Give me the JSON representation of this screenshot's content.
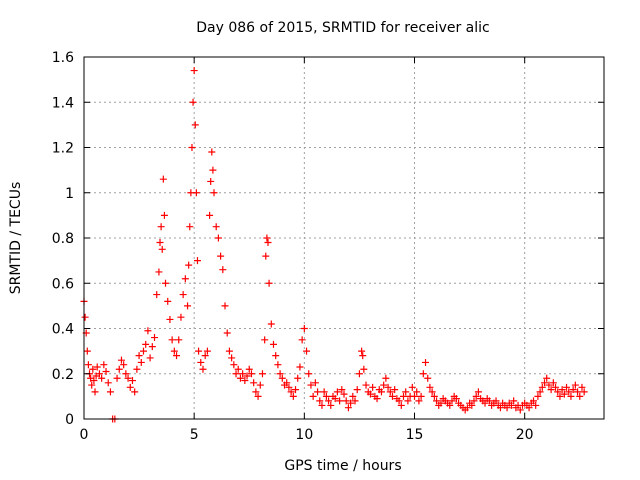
{
  "chart_data": {
    "type": "scatter",
    "title": "Day 086 of 2015, SRMTID for receiver alic",
    "xlabel": "GPS time / hours",
    "ylabel": "SRMTID / TECUs",
    "xlim": [
      0,
      23.6
    ],
    "ylim": [
      0,
      1.6
    ],
    "grid": true,
    "marker": "+",
    "x_ticks": [
      0,
      5,
      10,
      15,
      20
    ],
    "x_tick_labels": [
      "0",
      "5",
      "10",
      "15",
      "20"
    ],
    "y_ticks": [
      0,
      0.2,
      0.4,
      0.6,
      0.8,
      1,
      1.2,
      1.4,
      1.6
    ],
    "y_tick_labels": [
      "0",
      "0.2",
      "0.4",
      "0.6",
      "0.8",
      "1",
      "1.2",
      "1.4",
      "1.6"
    ],
    "series": [
      {
        "name": "SRMTID",
        "color": "#ff0000",
        "points": [
          [
            0.0,
            0.52
          ],
          [
            0.05,
            0.45
          ],
          [
            0.1,
            0.38
          ],
          [
            0.15,
            0.3
          ],
          [
            0.2,
            0.24
          ],
          [
            0.25,
            0.2
          ],
          [
            0.3,
            0.18
          ],
          [
            0.35,
            0.15
          ],
          [
            0.4,
            0.22
          ],
          [
            0.45,
            0.17
          ],
          [
            0.5,
            0.12
          ],
          [
            0.55,
            0.19
          ],
          [
            0.6,
            0.23
          ],
          [
            0.7,
            0.2
          ],
          [
            0.8,
            0.18
          ],
          [
            0.9,
            0.24
          ],
          [
            1.0,
            0.21
          ],
          [
            1.1,
            0.16
          ],
          [
            1.2,
            0.12
          ],
          [
            1.3,
            0.0
          ],
          [
            1.4,
            0.0
          ],
          [
            1.5,
            0.18
          ],
          [
            1.6,
            0.22
          ],
          [
            1.7,
            0.26
          ],
          [
            1.8,
            0.24
          ],
          [
            1.9,
            0.2
          ],
          [
            2.0,
            0.18
          ],
          [
            2.1,
            0.14
          ],
          [
            2.2,
            0.17
          ],
          [
            2.3,
            0.12
          ],
          [
            2.4,
            0.22
          ],
          [
            2.5,
            0.28
          ],
          [
            2.6,
            0.25
          ],
          [
            2.7,
            0.3
          ],
          [
            2.8,
            0.33
          ],
          [
            2.9,
            0.39
          ],
          [
            3.0,
            0.27
          ],
          [
            3.1,
            0.32
          ],
          [
            3.2,
            0.36
          ],
          [
            3.3,
            0.55
          ],
          [
            3.4,
            0.65
          ],
          [
            3.45,
            0.78
          ],
          [
            3.5,
            0.85
          ],
          [
            3.55,
            0.75
          ],
          [
            3.6,
            1.06
          ],
          [
            3.65,
            0.9
          ],
          [
            3.7,
            0.6
          ],
          [
            3.8,
            0.52
          ],
          [
            3.9,
            0.44
          ],
          [
            4.0,
            0.35
          ],
          [
            4.1,
            0.3
          ],
          [
            4.2,
            0.28
          ],
          [
            4.3,
            0.35
          ],
          [
            4.4,
            0.45
          ],
          [
            4.5,
            0.55
          ],
          [
            4.6,
            0.62
          ],
          [
            4.7,
            0.5
          ],
          [
            4.75,
            0.68
          ],
          [
            4.8,
            0.85
          ],
          [
            4.85,
            1.0
          ],
          [
            4.9,
            1.2
          ],
          [
            4.95,
            1.4
          ],
          [
            5.0,
            1.54
          ],
          [
            5.05,
            1.3
          ],
          [
            5.1,
            1.0
          ],
          [
            5.15,
            0.7
          ],
          [
            5.2,
            0.3
          ],
          [
            5.3,
            0.25
          ],
          [
            5.4,
            0.22
          ],
          [
            5.5,
            0.28
          ],
          [
            5.6,
            0.3
          ],
          [
            5.7,
            0.9
          ],
          [
            5.75,
            1.05
          ],
          [
            5.8,
            1.18
          ],
          [
            5.85,
            1.1
          ],
          [
            5.9,
            1.0
          ],
          [
            6.0,
            0.85
          ],
          [
            6.1,
            0.8
          ],
          [
            6.2,
            0.72
          ],
          [
            6.3,
            0.66
          ],
          [
            6.4,
            0.5
          ],
          [
            6.5,
            0.38
          ],
          [
            6.6,
            0.3
          ],
          [
            6.7,
            0.27
          ],
          [
            6.8,
            0.24
          ],
          [
            6.9,
            0.2
          ],
          [
            7.0,
            0.22
          ],
          [
            7.1,
            0.18
          ],
          [
            7.2,
            0.2
          ],
          [
            7.3,
            0.17
          ],
          [
            7.4,
            0.19
          ],
          [
            7.5,
            0.22
          ],
          [
            7.6,
            0.2
          ],
          [
            7.7,
            0.16
          ],
          [
            7.8,
            0.12
          ],
          [
            7.9,
            0.1
          ],
          [
            8.0,
            0.15
          ],
          [
            8.1,
            0.2
          ],
          [
            8.2,
            0.35
          ],
          [
            8.25,
            0.72
          ],
          [
            8.3,
            0.8
          ],
          [
            8.35,
            0.78
          ],
          [
            8.4,
            0.6
          ],
          [
            8.5,
            0.42
          ],
          [
            8.6,
            0.33
          ],
          [
            8.7,
            0.28
          ],
          [
            8.8,
            0.24
          ],
          [
            8.9,
            0.2
          ],
          [
            9.0,
            0.18
          ],
          [
            9.1,
            0.15
          ],
          [
            9.2,
            0.16
          ],
          [
            9.3,
            0.14
          ],
          [
            9.4,
            0.12
          ],
          [
            9.5,
            0.1
          ],
          [
            9.6,
            0.13
          ],
          [
            9.7,
            0.18
          ],
          [
            9.8,
            0.23
          ],
          [
            9.9,
            0.35
          ],
          [
            10.0,
            0.4
          ],
          [
            10.1,
            0.3
          ],
          [
            10.2,
            0.2
          ],
          [
            10.3,
            0.15
          ],
          [
            10.4,
            0.1
          ],
          [
            10.5,
            0.16
          ],
          [
            10.6,
            0.12
          ],
          [
            10.7,
            0.08
          ],
          [
            10.8,
            0.06
          ],
          [
            10.9,
            0.12
          ],
          [
            11.0,
            0.1
          ],
          [
            11.1,
            0.08
          ],
          [
            11.2,
            0.06
          ],
          [
            11.3,
            0.1
          ],
          [
            11.4,
            0.09
          ],
          [
            11.5,
            0.12
          ],
          [
            11.6,
            0.08
          ],
          [
            11.7,
            0.13
          ],
          [
            11.8,
            0.11
          ],
          [
            11.9,
            0.08
          ],
          [
            12.0,
            0.05
          ],
          [
            12.1,
            0.07
          ],
          [
            12.2,
            0.1
          ],
          [
            12.3,
            0.08
          ],
          [
            12.4,
            0.13
          ],
          [
            12.5,
            0.2
          ],
          [
            12.6,
            0.3
          ],
          [
            12.65,
            0.28
          ],
          [
            12.7,
            0.22
          ],
          [
            12.8,
            0.15
          ],
          [
            12.9,
            0.12
          ],
          [
            13.0,
            0.11
          ],
          [
            13.1,
            0.14
          ],
          [
            13.2,
            0.1
          ],
          [
            13.3,
            0.09
          ],
          [
            13.4,
            0.13
          ],
          [
            13.5,
            0.12
          ],
          [
            13.6,
            0.15
          ],
          [
            13.7,
            0.18
          ],
          [
            13.8,
            0.14
          ],
          [
            13.9,
            0.12
          ],
          [
            14.0,
            0.1
          ],
          [
            14.1,
            0.13
          ],
          [
            14.2,
            0.09
          ],
          [
            14.3,
            0.08
          ],
          [
            14.4,
            0.06
          ],
          [
            14.5,
            0.1
          ],
          [
            14.6,
            0.12
          ],
          [
            14.7,
            0.08
          ],
          [
            14.8,
            0.1
          ],
          [
            14.9,
            0.14
          ],
          [
            15.0,
            0.1
          ],
          [
            15.1,
            0.12
          ],
          [
            15.2,
            0.08
          ],
          [
            15.3,
            0.1
          ],
          [
            15.4,
            0.2
          ],
          [
            15.5,
            0.25
          ],
          [
            15.6,
            0.18
          ],
          [
            15.7,
            0.14
          ],
          [
            15.8,
            0.12
          ],
          [
            15.9,
            0.1
          ],
          [
            16.0,
            0.08
          ],
          [
            16.1,
            0.06
          ],
          [
            16.2,
            0.07
          ],
          [
            16.3,
            0.09
          ],
          [
            16.4,
            0.08
          ],
          [
            16.5,
            0.07
          ],
          [
            16.6,
            0.06
          ],
          [
            16.7,
            0.08
          ],
          [
            16.8,
            0.1
          ],
          [
            16.9,
            0.09
          ],
          [
            17.0,
            0.07
          ],
          [
            17.1,
            0.06
          ],
          [
            17.2,
            0.05
          ],
          [
            17.3,
            0.04
          ],
          [
            17.4,
            0.05
          ],
          [
            17.5,
            0.07
          ],
          [
            17.6,
            0.06
          ],
          [
            17.7,
            0.08
          ],
          [
            17.8,
            0.1
          ],
          [
            17.9,
            0.12
          ],
          [
            18.0,
            0.09
          ],
          [
            18.1,
            0.08
          ],
          [
            18.2,
            0.07
          ],
          [
            18.3,
            0.09
          ],
          [
            18.4,
            0.08
          ],
          [
            18.5,
            0.06
          ],
          [
            18.6,
            0.07
          ],
          [
            18.7,
            0.08
          ],
          [
            18.8,
            0.06
          ],
          [
            18.9,
            0.05
          ],
          [
            19.0,
            0.07
          ],
          [
            19.1,
            0.06
          ],
          [
            19.2,
            0.05
          ],
          [
            19.3,
            0.07
          ],
          [
            19.4,
            0.06
          ],
          [
            19.5,
            0.08
          ],
          [
            19.6,
            0.05
          ],
          [
            19.7,
            0.06
          ],
          [
            19.8,
            0.04
          ],
          [
            19.9,
            0.06
          ],
          [
            20.0,
            0.07
          ],
          [
            20.1,
            0.06
          ],
          [
            20.2,
            0.05
          ],
          [
            20.3,
            0.07
          ],
          [
            20.4,
            0.08
          ],
          [
            20.5,
            0.06
          ],
          [
            20.6,
            0.1
          ],
          [
            20.7,
            0.12
          ],
          [
            20.8,
            0.14
          ],
          [
            20.9,
            0.16
          ],
          [
            21.0,
            0.18
          ],
          [
            21.1,
            0.15
          ],
          [
            21.2,
            0.13
          ],
          [
            21.3,
            0.16
          ],
          [
            21.4,
            0.14
          ],
          [
            21.5,
            0.12
          ],
          [
            21.6,
            0.1
          ],
          [
            21.7,
            0.13
          ],
          [
            21.8,
            0.11
          ],
          [
            21.9,
            0.14
          ],
          [
            22.0,
            0.12
          ],
          [
            22.1,
            0.1
          ],
          [
            22.2,
            0.13
          ],
          [
            22.3,
            0.15
          ],
          [
            22.4,
            0.12
          ],
          [
            22.5,
            0.1
          ],
          [
            22.6,
            0.14
          ],
          [
            22.7,
            0.12
          ]
        ]
      }
    ]
  }
}
